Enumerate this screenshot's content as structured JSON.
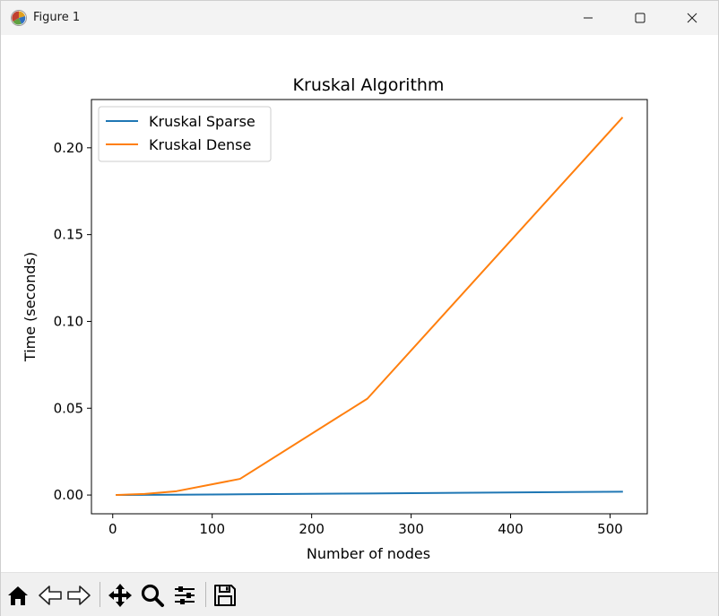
{
  "window": {
    "title": "Figure 1",
    "controls": [
      "minimize-icon",
      "maximize-icon",
      "close-icon"
    ]
  },
  "toolbar": {
    "tools": [
      "home-icon",
      "back-arrow-icon",
      "forward-arrow-icon",
      "pan-icon",
      "zoom-icon",
      "configure-subplots-icon",
      "save-icon"
    ]
  },
  "chart_data": {
    "type": "line",
    "title": "Kruskal Algorithm",
    "xlabel": "Number of nodes",
    "ylabel": "Time (seconds)",
    "xlim": [
      -21.4,
      537.4
    ],
    "ylim": [
      -0.0108,
      0.2278
    ],
    "xticks": [
      0,
      100,
      200,
      300,
      400,
      500
    ],
    "yticks": [
      0.0,
      0.05,
      0.1,
      0.15,
      0.2
    ],
    "xtick_labels": [
      "0",
      "100",
      "200",
      "300",
      "400",
      "500"
    ],
    "ytick_labels": [
      "0.00",
      "0.05",
      "0.10",
      "0.15",
      "0.20"
    ],
    "grid": false,
    "legend_position": "upper-left",
    "x": [
      4,
      8,
      16,
      32,
      64,
      128,
      256,
      512
    ],
    "series": [
      {
        "name": "Kruskal Sparse",
        "color": "#1f77b4",
        "values": [
          2e-05,
          3e-05,
          6e-05,
          0.0001,
          0.0002,
          0.0004,
          0.0009,
          0.0019
        ]
      },
      {
        "name": "Kruskal Dense",
        "color": "#ff7f0e",
        "values": [
          3e-05,
          0.0001,
          0.0003,
          0.0006,
          0.0022,
          0.0093,
          0.0555,
          0.2172
        ]
      }
    ]
  }
}
